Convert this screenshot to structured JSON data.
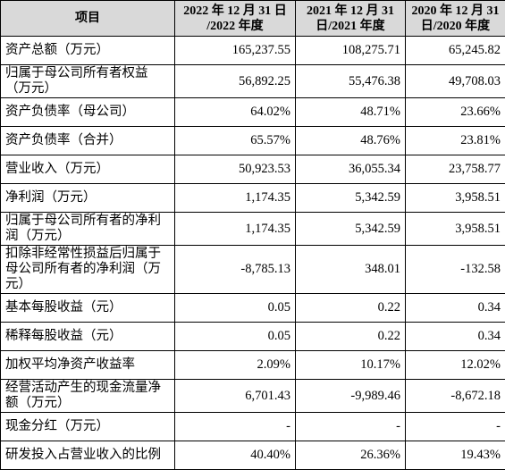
{
  "table": {
    "header": [
      "项目",
      [
        "2022 年 12 月 31 日",
        "/2022 年度"
      ],
      [
        "2021 年 12 月 31",
        "日/2021 年度"
      ],
      [
        "2020 年 12 月 31",
        "日/2020 年度"
      ]
    ],
    "rows": [
      [
        "资产总额（万元）",
        "165,237.55",
        "108,275.71",
        "65,245.82"
      ],
      [
        "归属于母公司所有者权益（万元）",
        "56,892.25",
        "55,476.38",
        "49,708.03"
      ],
      [
        "资产负债率（母公司）",
        "64.02%",
        "48.71%",
        "23.66%"
      ],
      [
        "资产负债率（合并）",
        "65.57%",
        "48.76%",
        "23.81%"
      ],
      [
        "营业收入（万元）",
        "50,923.53",
        "36,055.34",
        "23,758.77"
      ],
      [
        "净利润（万元）",
        "1,174.35",
        "5,342.59",
        "3,958.51"
      ],
      [
        "归属于母公司所有者的净利润（万元）",
        "1,174.35",
        "5,342.59",
        "3,958.51"
      ],
      [
        "扣除非经常性损益后归属于母公司所有者的净利润（万元）",
        "-8,785.13",
        "348.01",
        "-132.58"
      ],
      [
        "基本每股收益（元）",
        "0.05",
        "0.22",
        "0.34"
      ],
      [
        "稀释每股收益（元）",
        "0.05",
        "0.22",
        "0.34"
      ],
      [
        "加权平均净资产收益率",
        "2.09%",
        "10.17%",
        "12.02%"
      ],
      [
        "经营活动产生的现金流量净额（万元）",
        "6,701.43",
        "-9,989.46",
        "-8,672.18"
      ],
      [
        "现金分红（万元）",
        "-",
        "-",
        "-"
      ],
      [
        "研发投入占营业收入的比例",
        "40.40%",
        "26.36%",
        "19.43%"
      ]
    ]
  }
}
